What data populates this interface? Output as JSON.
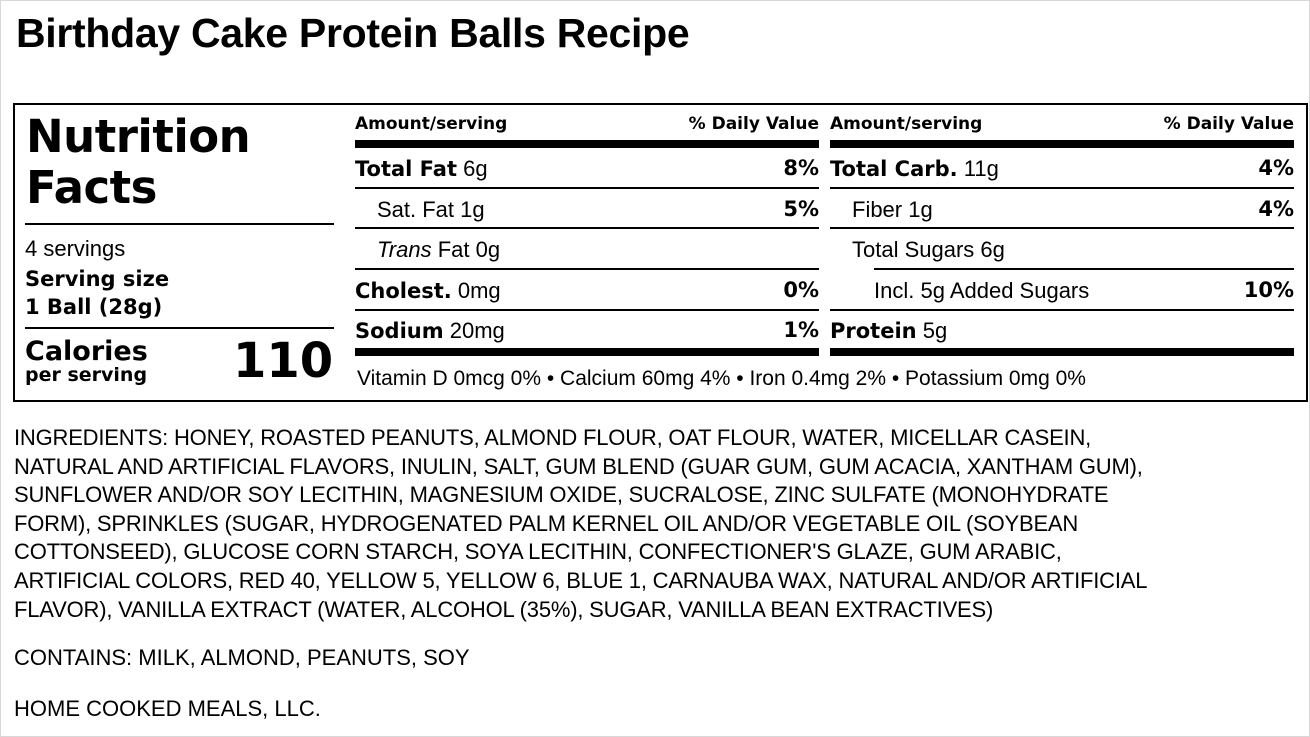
{
  "title": "Birthday Cake Protein Balls Recipe",
  "label": {
    "heading_line1": "Nutrition",
    "heading_line2": "Facts",
    "servings": "4 servings",
    "serving_size_label": "Serving size",
    "serving_size_value": "1 Ball (28g)",
    "calories_label": "Calories",
    "calories_sublabel": "per serving",
    "calories_value": "110",
    "left_table": {
      "header_amount": "Amount/serving",
      "header_dv": "% Daily Value",
      "rows": [
        {
          "name": "Total Fat",
          "amount": "6g",
          "dv": "8%"
        },
        {
          "name": "Sat. Fat",
          "amount": "1g",
          "dv": "5%"
        },
        {
          "name": "Trans",
          "amount": "Fat 0g",
          "dv": ""
        },
        {
          "name": "Cholest.",
          "amount": "0mg",
          "dv": "0%"
        },
        {
          "name": "Sodium",
          "amount": "20mg",
          "dv": "1%"
        }
      ]
    },
    "right_table": {
      "header_amount": "Amount/serving",
      "header_dv": "% Daily Value",
      "rows": [
        {
          "name": "Total Carb.",
          "amount": "11g",
          "dv": "4%"
        },
        {
          "name": "Fiber",
          "amount": "1g",
          "dv": "4%"
        },
        {
          "name": "Total Sugars",
          "amount": "6g",
          "dv": ""
        },
        {
          "name": "Incl. 5g Added Sugars",
          "amount": "",
          "dv": "10%"
        },
        {
          "name": "Protein",
          "amount": "5g",
          "dv": ""
        }
      ]
    },
    "vitamins": "Vitamin D 0mcg 0% • Calcium 60mg 4% • Iron 0.4mg 2% • Potassium 0mg 0%"
  },
  "ingredients_lines": [
    "INGREDIENTS: HONEY, ROASTED PEANUTS, ALMOND FLOUR, OAT FLOUR, WATER, MICELLAR CASEIN,",
    "NATURAL AND ARTIFICIAL FLAVORS, INULIN, SALT, GUM BLEND (GUAR GUM, GUM ACACIA, XANTHAM GUM),",
    "SUNFLOWER AND/OR SOY LECITHIN, MAGNESIUM OXIDE, SUCRALOSE, ZINC SULFATE (MONOHYDRATE",
    "FORM), SPRINKLES (SUGAR, HYDROGENATED PALM KERNEL OIL AND/OR VEGETABLE OIL (SOYBEAN",
    "COTTONSEED), GLUCOSE CORN STARCH, SOYA LECITHIN, CONFECTIONER'S GLAZE, GUM ARABIC,",
    "ARTIFICIAL COLORS, RED 40, YELLOW 5, YELLOW 6, BLUE 1, CARNAUBA WAX, NATURAL AND/OR ARTIFICIAL",
    "FLAVOR), VANILLA EXTRACT (WATER, ALCOHOL (35%), SUGAR, VANILLA BEAN EXTRACTIVES)"
  ],
  "contains": "CONTAINS: MILK, ALMOND, PEANUTS, SOY",
  "company": "HOME COOKED MEALS, LLC."
}
